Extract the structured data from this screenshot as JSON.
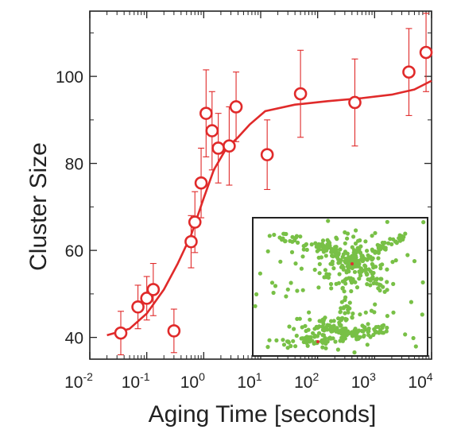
{
  "chart_data": {
    "type": "scatter",
    "title": "",
    "xlabel": "Aging Time [seconds]",
    "ylabel": "Cluster Size",
    "x_scale": "log",
    "xlim": [
      0.01,
      10000
    ],
    "ylim": [
      35,
      115
    ],
    "x_major_ticks": [
      0.01,
      0.1,
      1,
      10,
      100,
      1000,
      10000
    ],
    "x_tick_labels": [
      {
        "base": "10",
        "exp": "-2"
      },
      {
        "base": "10",
        "exp": "-1"
      },
      {
        "base": "10",
        "exp": "0"
      },
      {
        "base": "10",
        "exp": "1"
      },
      {
        "base": "10",
        "exp": "2"
      },
      {
        "base": "10",
        "exp": "3"
      },
      {
        "base": "10",
        "exp": "4"
      }
    ],
    "y_major_ticks": [
      40,
      60,
      80,
      100
    ],
    "y_tick_labels": [
      "40",
      "60",
      "80",
      "100"
    ],
    "y_minor_step": 10,
    "grid": false,
    "legend": "none",
    "color": "#e02a2a",
    "series": [
      {
        "type": "scatter",
        "points": [
          {
            "x": 0.035,
            "y": 41,
            "err": 5
          },
          {
            "x": 0.07,
            "y": 47,
            "err": 5
          },
          {
            "x": 0.1,
            "y": 49,
            "err": 5
          },
          {
            "x": 0.13,
            "y": 51,
            "err": 6
          },
          {
            "x": 0.3,
            "y": 41.5,
            "err": 5
          },
          {
            "x": 0.6,
            "y": 62,
            "err": 6
          },
          {
            "x": 0.7,
            "y": 66.5,
            "err": 7
          },
          {
            "x": 0.9,
            "y": 75.5,
            "err": 8
          },
          {
            "x": 1.1,
            "y": 91.5,
            "err": 10
          },
          {
            "x": 1.4,
            "y": 87.5,
            "err": 9
          },
          {
            "x": 1.8,
            "y": 83.5,
            "err": 8
          },
          {
            "x": 2.8,
            "y": 84,
            "err": 9
          },
          {
            "x": 3.7,
            "y": 93,
            "err": 8
          },
          {
            "x": 13,
            "y": 82,
            "err": 8
          },
          {
            "x": 50,
            "y": 96,
            "err": 10
          },
          {
            "x": 450,
            "y": 94,
            "err": 10
          },
          {
            "x": 4000,
            "y": 101,
            "err": 10
          },
          {
            "x": 8000,
            "y": 105.5,
            "err": 9
          }
        ]
      },
      {
        "type": "line",
        "points": [
          {
            "x": 0.02,
            "y": 40.5
          },
          {
            "x": 0.05,
            "y": 42
          },
          {
            "x": 0.1,
            "y": 45.5
          },
          {
            "x": 0.2,
            "y": 51
          },
          {
            "x": 0.35,
            "y": 57
          },
          {
            "x": 0.6,
            "y": 63.5
          },
          {
            "x": 1,
            "y": 72
          },
          {
            "x": 1.5,
            "y": 78.5
          },
          {
            "x": 2.5,
            "y": 83.5
          },
          {
            "x": 4,
            "y": 86
          },
          {
            "x": 6.5,
            "y": 89
          },
          {
            "x": 12,
            "y": 92
          },
          {
            "x": 40,
            "y": 93.5
          },
          {
            "x": 150,
            "y": 94.3
          },
          {
            "x": 600,
            "y": 95
          },
          {
            "x": 2000,
            "y": 95.8
          },
          {
            "x": 5000,
            "y": 97
          },
          {
            "x": 10000,
            "y": 99
          }
        ]
      }
    ],
    "inset": {
      "content": "micrograph",
      "background": "#ffffff",
      "dot_color": "#78c046",
      "marker_color": "#e03030"
    }
  }
}
